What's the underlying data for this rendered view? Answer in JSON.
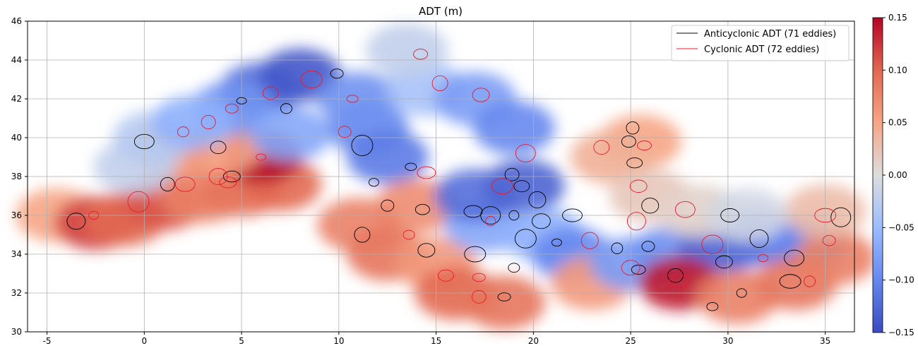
{
  "chart_data": {
    "type": "heatmap",
    "title": "ADT (m)",
    "xlabel": "",
    "ylabel": "",
    "xlim": [
      -6,
      36.5
    ],
    "ylim": [
      30,
      46
    ],
    "x_ticks": [
      -5,
      0,
      5,
      10,
      15,
      20,
      25,
      30,
      35
    ],
    "y_ticks": [
      30,
      32,
      34,
      36,
      38,
      40,
      42,
      44,
      46
    ],
    "grid": true,
    "colormap": "coolwarm",
    "colorbar": {
      "min": -0.15,
      "max": 0.15,
      "ticks": [
        -0.15,
        -0.1,
        -0.05,
        0.0,
        0.05,
        0.1,
        0.15
      ],
      "tick_labels": [
        "−0.15",
        "−0.10",
        "−0.05",
        "0.00",
        "0.05",
        "0.10",
        "0.15"
      ]
    },
    "legend": {
      "placement": "top-right",
      "entries": [
        {
          "label": "Anticyclonic ADT (71 eddies)",
          "color": "#000000"
        },
        {
          "label": "Cyclonic ADT (72 eddies)",
          "color": "#e8192c"
        }
      ]
    },
    "adt_field_blobs": [
      {
        "lon": -4.5,
        "lat": 36.0,
        "value": 0.05
      },
      {
        "lon": -2.5,
        "lat": 35.6,
        "value": 0.12
      },
      {
        "lon": -1.0,
        "lat": 35.8,
        "value": 0.1
      },
      {
        "lon": 1.0,
        "lat": 36.6,
        "value": 0.11
      },
      {
        "lon": 3.0,
        "lat": 37.0,
        "value": 0.08
      },
      {
        "lon": 5.0,
        "lat": 37.3,
        "value": 0.09
      },
      {
        "lon": 7.0,
        "lat": 37.6,
        "value": 0.1
      },
      {
        "lon": 6.0,
        "lat": 39.0,
        "value": 0.15
      },
      {
        "lon": 4.0,
        "lat": 39.5,
        "value": 0.05
      },
      {
        "lon": 1.5,
        "lat": 39.3,
        "value": 0.06
      },
      {
        "lon": -0.5,
        "lat": 38.5,
        "value": -0.02
      },
      {
        "lon": 0.5,
        "lat": 40.0,
        "value": -0.03
      },
      {
        "lon": 6.0,
        "lat": 42.5,
        "value": -0.12
      },
      {
        "lon": 8.0,
        "lat": 43.2,
        "value": -0.14
      },
      {
        "lon": 4.5,
        "lat": 41.5,
        "value": -0.09
      },
      {
        "lon": 2.5,
        "lat": 40.8,
        "value": -0.06
      },
      {
        "lon": 7.5,
        "lat": 40.2,
        "value": -0.07
      },
      {
        "lon": 11.5,
        "lat": 40.5,
        "value": -0.1
      },
      {
        "lon": 12.5,
        "lat": 39.0,
        "value": -0.11
      },
      {
        "lon": 11.0,
        "lat": 42.0,
        "value": -0.09
      },
      {
        "lon": 14.5,
        "lat": 42.5,
        "value": -0.04
      },
      {
        "lon": 17.0,
        "lat": 42.0,
        "value": -0.08
      },
      {
        "lon": 19.0,
        "lat": 40.5,
        "value": -0.1
      },
      {
        "lon": 13.5,
        "lat": 44.5,
        "value": -0.02
      },
      {
        "lon": 14.0,
        "lat": 36.5,
        "value": 0.07
      },
      {
        "lon": 11.0,
        "lat": 35.5,
        "value": 0.08
      },
      {
        "lon": 12.5,
        "lat": 34.0,
        "value": 0.09
      },
      {
        "lon": 15.0,
        "lat": 33.5,
        "value": 0.06
      },
      {
        "lon": 16.0,
        "lat": 32.0,
        "value": 0.1
      },
      {
        "lon": 18.5,
        "lat": 31.5,
        "value": 0.09
      },
      {
        "lon": 17.5,
        "lat": 35.5,
        "value": -0.07
      },
      {
        "lon": 17.0,
        "lat": 37.0,
        "value": -0.12
      },
      {
        "lon": 19.5,
        "lat": 37.5,
        "value": -0.13
      },
      {
        "lon": 20.5,
        "lat": 35.0,
        "value": -0.06
      },
      {
        "lon": 22.0,
        "lat": 34.0,
        "value": -0.1
      },
      {
        "lon": 23.0,
        "lat": 32.5,
        "value": 0.06
      },
      {
        "lon": 25.0,
        "lat": 33.5,
        "value": -0.08
      },
      {
        "lon": 27.0,
        "lat": 34.0,
        "value": -0.09
      },
      {
        "lon": 29.5,
        "lat": 34.3,
        "value": -0.13
      },
      {
        "lon": 31.5,
        "lat": 34.8,
        "value": -0.12
      },
      {
        "lon": 34.0,
        "lat": 34.5,
        "value": -0.1
      },
      {
        "lon": 27.5,
        "lat": 32.5,
        "value": 0.14
      },
      {
        "lon": 30.5,
        "lat": 31.8,
        "value": 0.08
      },
      {
        "lon": 33.5,
        "lat": 32.5,
        "value": 0.09
      },
      {
        "lon": 35.5,
        "lat": 33.8,
        "value": 0.08
      },
      {
        "lon": 35.0,
        "lat": 36.2,
        "value": 0.03
      },
      {
        "lon": 25.5,
        "lat": 39.8,
        "value": 0.05
      },
      {
        "lon": 24.0,
        "lat": 39.0,
        "value": 0.04
      },
      {
        "lon": 26.0,
        "lat": 37.0,
        "value": 0.02
      },
      {
        "lon": 28.5,
        "lat": 36.2,
        "value": 0.01
      },
      {
        "lon": 31.0,
        "lat": 36.0,
        "value": -0.01
      }
    ],
    "eddies": [
      {
        "type": "anticyclonic",
        "lon": 5.0,
        "lat": 41.9
      },
      {
        "type": "anticyclonic",
        "lon": 7.3,
        "lat": 41.5
      },
      {
        "type": "anticyclonic",
        "lon": 9.9,
        "lat": 43.3
      },
      {
        "type": "anticyclonic",
        "lon": 1.2,
        "lat": 37.6
      },
      {
        "type": "anticyclonic",
        "lon": 3.8,
        "lat": 39.5
      },
      {
        "type": "anticyclonic",
        "lon": 4.5,
        "lat": 38.0
      },
      {
        "type": "anticyclonic",
        "lon": -3.5,
        "lat": 35.7
      },
      {
        "type": "anticyclonic",
        "lon": 0.0,
        "lat": 39.8
      },
      {
        "type": "anticyclonic",
        "lon": 11.2,
        "lat": 39.6
      },
      {
        "type": "anticyclonic",
        "lon": 11.8,
        "lat": 37.7
      },
      {
        "type": "anticyclonic",
        "lon": 13.7,
        "lat": 38.5
      },
      {
        "type": "anticyclonic",
        "lon": 12.5,
        "lat": 36.5
      },
      {
        "type": "anticyclonic",
        "lon": 14.3,
        "lat": 36.3
      },
      {
        "type": "anticyclonic",
        "lon": 11.2,
        "lat": 35.0
      },
      {
        "type": "anticyclonic",
        "lon": 14.5,
        "lat": 34.2
      },
      {
        "type": "anticyclonic",
        "lon": 16.9,
        "lat": 36.2
      },
      {
        "type": "anticyclonic",
        "lon": 17.8,
        "lat": 36.0
      },
      {
        "type": "anticyclonic",
        "lon": 17.0,
        "lat": 34.0
      },
      {
        "type": "anticyclonic",
        "lon": 19.0,
        "lat": 36.0
      },
      {
        "type": "anticyclonic",
        "lon": 19.0,
        "lat": 33.3
      },
      {
        "type": "anticyclonic",
        "lon": 18.5,
        "lat": 31.8
      },
      {
        "type": "anticyclonic",
        "lon": 18.9,
        "lat": 38.1
      },
      {
        "type": "anticyclonic",
        "lon": 19.4,
        "lat": 37.5
      },
      {
        "type": "anticyclonic",
        "lon": 20.2,
        "lat": 36.8
      },
      {
        "type": "anticyclonic",
        "lon": 20.4,
        "lat": 35.7
      },
      {
        "type": "anticyclonic",
        "lon": 22.0,
        "lat": 36.0
      },
      {
        "type": "anticyclonic",
        "lon": 19.6,
        "lat": 34.8
      },
      {
        "type": "anticyclonic",
        "lon": 21.2,
        "lat": 34.6
      },
      {
        "type": "anticyclonic",
        "lon": 24.3,
        "lat": 34.3
      },
      {
        "type": "anticyclonic",
        "lon": 25.9,
        "lat": 34.4
      },
      {
        "type": "anticyclonic",
        "lon": 25.4,
        "lat": 33.2
      },
      {
        "type": "anticyclonic",
        "lon": 27.3,
        "lat": 32.9
      },
      {
        "type": "anticyclonic",
        "lon": 29.8,
        "lat": 33.6
      },
      {
        "type": "anticyclonic",
        "lon": 31.6,
        "lat": 34.8
      },
      {
        "type": "anticyclonic",
        "lon": 33.4,
        "lat": 33.8
      },
      {
        "type": "anticyclonic",
        "lon": 33.2,
        "lat": 32.6
      },
      {
        "type": "anticyclonic",
        "lon": 30.7,
        "lat": 32.0
      },
      {
        "type": "anticyclonic",
        "lon": 29.2,
        "lat": 31.3
      },
      {
        "type": "anticyclonic",
        "lon": 25.1,
        "lat": 40.5
      },
      {
        "type": "anticyclonic",
        "lon": 24.9,
        "lat": 39.8
      },
      {
        "type": "anticyclonic",
        "lon": 25.2,
        "lat": 38.7
      },
      {
        "type": "anticyclonic",
        "lon": 26.0,
        "lat": 36.5
      },
      {
        "type": "anticyclonic",
        "lon": 30.1,
        "lat": 36.0
      },
      {
        "type": "anticyclonic",
        "lon": 35.8,
        "lat": 35.9
      },
      {
        "type": "cyclonic",
        "lon": 8.6,
        "lat": 43.0
      },
      {
        "type": "cyclonic",
        "lon": 6.0,
        "lat": 39.0
      },
      {
        "type": "cyclonic",
        "lon": 2.0,
        "lat": 40.3
      },
      {
        "type": "cyclonic",
        "lon": 4.5,
        "lat": 41.5
      },
      {
        "type": "cyclonic",
        "lon": 3.3,
        "lat": 40.8
      },
      {
        "type": "cyclonic",
        "lon": 6.5,
        "lat": 42.3
      },
      {
        "type": "cyclonic",
        "lon": 4.3,
        "lat": 37.7
      },
      {
        "type": "cyclonic",
        "lon": 3.8,
        "lat": 38.0
      },
      {
        "type": "cyclonic",
        "lon": 2.1,
        "lat": 37.6
      },
      {
        "type": "cyclonic",
        "lon": -0.3,
        "lat": 36.7
      },
      {
        "type": "cyclonic",
        "lon": -2.6,
        "lat": 36.0
      },
      {
        "type": "cyclonic",
        "lon": 10.7,
        "lat": 42.0
      },
      {
        "type": "cyclonic",
        "lon": 10.3,
        "lat": 40.3
      },
      {
        "type": "cyclonic",
        "lon": 14.2,
        "lat": 44.3
      },
      {
        "type": "cyclonic",
        "lon": 15.2,
        "lat": 42.8
      },
      {
        "type": "cyclonic",
        "lon": 17.3,
        "lat": 42.2
      },
      {
        "type": "cyclonic",
        "lon": 14.5,
        "lat": 38.2
      },
      {
        "type": "cyclonic",
        "lon": 19.6,
        "lat": 39.2
      },
      {
        "type": "cyclonic",
        "lon": 18.4,
        "lat": 37.5
      },
      {
        "type": "cyclonic",
        "lon": 17.8,
        "lat": 35.7
      },
      {
        "type": "cyclonic",
        "lon": 13.6,
        "lat": 35.0
      },
      {
        "type": "cyclonic",
        "lon": 17.2,
        "lat": 32.8
      },
      {
        "type": "cyclonic",
        "lon": 17.2,
        "lat": 31.8
      },
      {
        "type": "cyclonic",
        "lon": 15.5,
        "lat": 32.9
      },
      {
        "type": "cyclonic",
        "lon": 22.9,
        "lat": 34.7
      },
      {
        "type": "cyclonic",
        "lon": 25.0,
        "lat": 33.3
      },
      {
        "type": "cyclonic",
        "lon": 27.5,
        "lat": 32.6
      },
      {
        "type": "cyclonic",
        "lon": 29.2,
        "lat": 34.5
      },
      {
        "type": "cyclonic",
        "lon": 31.8,
        "lat": 33.8
      },
      {
        "type": "cyclonic",
        "lon": 34.2,
        "lat": 32.6
      },
      {
        "type": "cyclonic",
        "lon": 35.2,
        "lat": 34.7
      },
      {
        "type": "cyclonic",
        "lon": 25.7,
        "lat": 39.6
      },
      {
        "type": "cyclonic",
        "lon": 23.5,
        "lat": 39.5
      },
      {
        "type": "cyclonic",
        "lon": 25.4,
        "lat": 37.5
      },
      {
        "type": "cyclonic",
        "lon": 25.3,
        "lat": 35.7
      },
      {
        "type": "cyclonic",
        "lon": 27.8,
        "lat": 36.3
      },
      {
        "type": "cyclonic",
        "lon": 35.0,
        "lat": 36.0
      }
    ]
  }
}
